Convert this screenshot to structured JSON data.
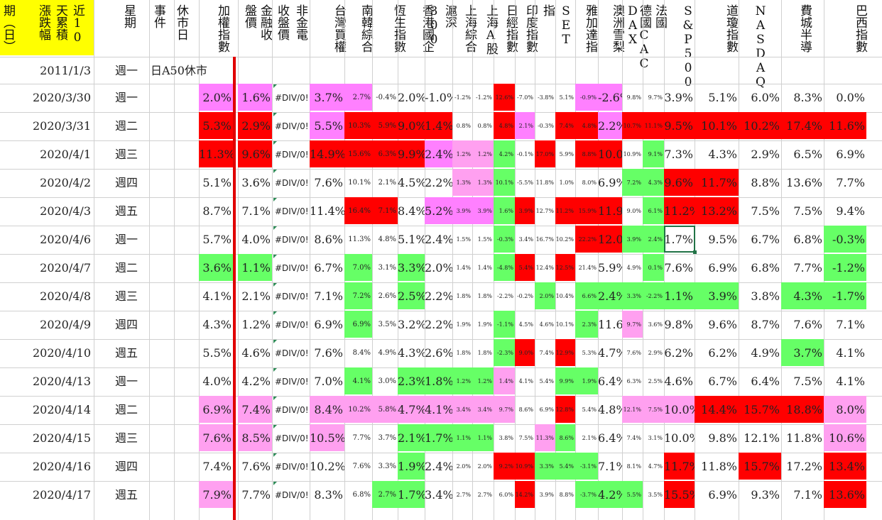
{
  "colors": {
    "pink": "#ff80ff",
    "lightpink": "#ffa0f0",
    "red": "#ff0000",
    "green": "#66ff66",
    "yellow": "#ffff00",
    "selection": "#217346"
  },
  "columns": [
    {
      "key": "date",
      "header": "期（日）"
    },
    {
      "key": "chg",
      "header": "漲跌幅"
    },
    {
      "key": "days",
      "header": "天累積"
    },
    {
      "key": "recent",
      "header": "近10"
    },
    {
      "key": "weekday",
      "header": "星期"
    },
    {
      "key": "event",
      "header": "事件"
    },
    {
      "key": "holiday",
      "header": "休市日"
    },
    {
      "key": "wtd",
      "header": "加權指數"
    },
    {
      "key": "c8",
      "header": "盤價"
    },
    {
      "key": "fin",
      "header": "金融收"
    },
    {
      "key": "nonfin",
      "header": "收盤價"
    },
    {
      "key": "elec",
      "header": "非金電"
    },
    {
      "key": "tw",
      "header": "台灣買權"
    },
    {
      "key": "kr",
      "header": "南韓綜合"
    },
    {
      "key": "hs",
      "header": "恆生指數"
    },
    {
      "key": "hk",
      "header": "香港國企"
    },
    {
      "key": "c300",
      "header": "300"
    },
    {
      "key": "sz",
      "header": "滬深"
    },
    {
      "key": "sh1",
      "header": "上海綜合"
    },
    {
      "key": "sh2",
      "header": "上海A股"
    },
    {
      "key": "jp",
      "header": "日經指數"
    },
    {
      "key": "in",
      "header": "印度指數"
    },
    {
      "key": "id",
      "header": "指"
    },
    {
      "key": "set",
      "header": "SET"
    },
    {
      "key": "jk",
      "header": "雅加達指"
    },
    {
      "key": "asx",
      "header": "澳洲雪梨"
    },
    {
      "key": "dax",
      "header": "DAX"
    },
    {
      "key": "de",
      "header": "德國CAC"
    },
    {
      "key": "fr",
      "header": "法國"
    },
    {
      "key": "sp",
      "header": "S&P500"
    },
    {
      "key": "dow",
      "header": "道瓊指數"
    },
    {
      "key": "nasdaq",
      "header": "NASDAQ"
    },
    {
      "key": "sox",
      "header": "費城半導"
    },
    {
      "key": "br",
      "header": "巴西指數"
    }
  ],
  "rows": [
    {
      "date": "2011/1/3",
      "weekday": "週一",
      "event": "日A50休市",
      "values": []
    },
    {
      "date": "2020/3/30",
      "weekday": "週一",
      "values": [
        "2.0%",
        "1.6%",
        "#DIV/0!",
        "3.7%",
        "2.7%",
        "-0.4%",
        "2.0%",
        "-1.0%",
        "-1.2%",
        "-1.2%",
        "12.6%",
        "-7.0%",
        "-3.8%",
        "5.1%",
        "-0.9%",
        "-2.6%",
        "9.8%",
        "9.7%",
        "3.9%",
        "5.1%",
        "6.0%",
        "8.3%",
        "0.0%"
      ]
    },
    {
      "date": "2020/3/31",
      "weekday": "週二",
      "values": [
        "5.3%",
        "2.9%",
        "#DIV/0!",
        "5.5%",
        "10.3%",
        "5.9%",
        "9.0%",
        "1.4%",
        "0.8%",
        "0.8%",
        "4.8%",
        "2.1%",
        "-0.3%",
        "7.4%",
        "4.8%",
        "2.2%",
        "10.7%",
        "11.1%",
        "9.5%",
        "10.1%",
        "10.2%",
        "17.4%",
        "11.6%"
      ]
    },
    {
      "date": "2020/4/1",
      "weekday": "週三",
      "values": [
        "11.3%",
        "9.6%",
        "#DIV/0!",
        "14.9%",
        "15.6%",
        "6.3%",
        "9.9%",
        "2.4%",
        "1.2%",
        "1.2%",
        "4.2%",
        "-0.1%",
        "17.0%",
        "5.9%",
        "8.8%",
        "10.0%",
        "10.9%",
        "9.1%",
        "7.3%",
        "4.3%",
        "2.9%",
        "6.5%",
        "6.9%"
      ]
    },
    {
      "date": "2020/4/2",
      "weekday": "週四",
      "values": [
        "5.1%",
        "3.6%",
        "#DIV/0!",
        "7.6%",
        "10.1%",
        "2.1%",
        "4.5%",
        "2.2%",
        "1.3%",
        "1.3%",
        "10.1%",
        "-5.5%",
        "11.8%",
        "1.0%",
        "8.0%",
        "6.9%",
        "7.2%",
        "4.3%",
        "9.6%",
        "11.7%",
        "8.8%",
        "13.6%",
        "7.7%"
      ]
    },
    {
      "date": "2020/4/3",
      "weekday": "週五",
      "values": [
        "8.7%",
        "7.1%",
        "#DIV/0!",
        "11.4%",
        "16.4%",
        "7.1%",
        "8.4%",
        "5.2%",
        "3.9%",
        "3.9%",
        "1.6%",
        "3.9%",
        "12.7%",
        "11.2%",
        "15.9%",
        "11.9%",
        "9.0%",
        "6.1%",
        "11.2%",
        "13.2%",
        "7.5%",
        "7.5%",
        "9.4%"
      ]
    },
    {
      "date": "2020/4/6",
      "weekday": "週一",
      "values": [
        "5.7%",
        "4.0%",
        "#DIV/0!",
        "8.6%",
        "11.3%",
        "4.8%",
        "5.1%",
        "2.4%",
        "1.5%",
        "1.5%",
        "-0.3%",
        "3.4%",
        "16.7%",
        "10.2%",
        "22.2%",
        "12.0%",
        "3.9%",
        "2.4%",
        "1.7%",
        "9.5%",
        "6.7%",
        "6.8%",
        "-0.3%"
      ]
    },
    {
      "date": "2020/4/7",
      "weekday": "週二",
      "values": [
        "3.6%",
        "1.1%",
        "#DIV/0!",
        "6.7%",
        "7.0%",
        "3.1%",
        "3.3%",
        "2.0%",
        "1.4%",
        "1.4%",
        "-4.8%",
        "5.4%",
        "12.4%",
        "12.5%",
        "21.4%",
        "5.9%",
        "4.9%",
        "0.1%",
        "7.6%",
        "6.9%",
        "6.8%",
        "7.7%",
        "-1.2%"
      ]
    },
    {
      "date": "2020/4/8",
      "weekday": "週三",
      "values": [
        "4.1%",
        "2.1%",
        "#DIV/0!",
        "7.1%",
        "7.2%",
        "2.6%",
        "2.5%",
        "2.2%",
        "1.8%",
        "1.8%",
        "-2.2%",
        "-0.2%",
        "2.0%",
        "10.4%",
        "6.6%",
        "2.4%",
        "3.3%",
        "-2.2%",
        "1.1%",
        "3.9%",
        "3.8%",
        "4.3%",
        "-1.7%"
      ]
    },
    {
      "date": "2020/4/9",
      "weekday": "週四",
      "values": [
        "4.3%",
        "1.2%",
        "#DIV/0!",
        "6.9%",
        "6.9%",
        "3.5%",
        "3.2%",
        "2.2%",
        "1.9%",
        "1.9%",
        "-1.1%",
        "4.5%",
        "4.6%",
        "10.1%",
        "2.3%",
        "11.6%",
        "9.7%",
        "3.6%",
        "9.8%",
        "9.6%",
        "8.7%",
        "7.6%",
        "7.1%"
      ]
    },
    {
      "date": "2020/4/10",
      "weekday": "週五",
      "values": [
        "5.5%",
        "4.6%",
        "#DIV/0!",
        "7.6%",
        "8.4%",
        "4.9%",
        "4.3%",
        "2.6%",
        "1.8%",
        "1.8%",
        "-2.3%",
        "9.0%",
        "7.4%",
        "12.9%",
        "5.3%",
        "4.7%",
        "7.6%",
        "2.9%",
        "6.2%",
        "6.2%",
        "4.9%",
        "3.7%",
        "4.1%"
      ]
    },
    {
      "date": "2020/4/13",
      "weekday": "週一",
      "values": [
        "4.0%",
        "4.2%",
        "#DIV/0!",
        "7.0%",
        "4.1%",
        "3.0%",
        "2.3%",
        "1.8%",
        "1.2%",
        "1.2%",
        "1.4%",
        "4.1%",
        "5.4%",
        "9.9%",
        "1.9%",
        "6.4%",
        "6.3%",
        "2.5%",
        "4.6%",
        "6.7%",
        "6.4%",
        "7.5%",
        "4.1%"
      ]
    },
    {
      "date": "2020/4/14",
      "weekday": "週二",
      "values": [
        "6.9%",
        "7.4%",
        "#DIV/0!",
        "8.4%",
        "10.2%",
        "5.8%",
        "4.7%",
        "4.1%",
        "3.4%",
        "3.4%",
        "9.7%",
        "8.6%",
        "6.9%",
        "12.8%",
        "5.4%",
        "4.8%",
        "12.1%",
        "7.5%",
        "10.0%",
        "14.4%",
        "15.7%",
        "18.8%",
        "8.0%"
      ]
    },
    {
      "date": "2020/4/15",
      "weekday": "週三",
      "values": [
        "7.6%",
        "8.5%",
        "#DIV/0!",
        "10.5%",
        "7.7%",
        "3.7%",
        "2.1%",
        "1.7%",
        "1.1%",
        "1.1%",
        "3.8%",
        "7.5%",
        "11.3%",
        "8.6%",
        "2.1%",
        "6.4%",
        "7.4%",
        "3.1%",
        "10.0%",
        "9.8%",
        "12.1%",
        "11.8%",
        "10.6%"
      ]
    },
    {
      "date": "2020/4/16",
      "weekday": "週四",
      "values": [
        "7.4%",
        "7.6%",
        "#DIV/0!",
        "10.2%",
        "7.6%",
        "3.3%",
        "1.9%",
        "2.4%",
        "2.0%",
        "2.0%",
        "9.2%",
        "10.9%",
        "3.3%",
        "5.4%",
        "-3.1%",
        "7.1%",
        "8.1%",
        "4.7%",
        "11.7%",
        "11.8%",
        "15.7%",
        "17.2%",
        "13.4%"
      ]
    },
    {
      "date": "2020/4/17",
      "weekday": "週五",
      "values": [
        "7.9%",
        "7.7%",
        "#DIV/0!",
        "8.3%",
        "6.8%",
        "2.7%",
        "1.7%",
        "3.4%",
        "2.7%",
        "2.7%",
        "6.0%",
        "14.2%",
        "3.9%",
        "8.8%",
        "-3.7%",
        "4.2%",
        "5.5%",
        "3.5%",
        "15.5%",
        "6.9%",
        "9.3%",
        "7.1%",
        "13.6%"
      ]
    }
  ]
}
